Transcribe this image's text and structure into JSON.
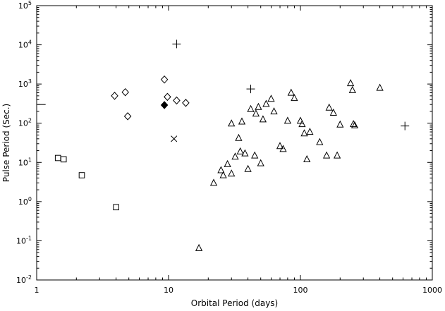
{
  "figure": {
    "background": "#ffffff",
    "axis_color": "#000000"
  },
  "chart_data": {
    "type": "scatter",
    "title": "",
    "xlabel": "Orbital Period (days)",
    "ylabel": "Pulse Period (Sec.)",
    "x_scale": "log",
    "y_scale": "log",
    "x_range": [
      1,
      1000
    ],
    "y_range": [
      0.01,
      100000
    ],
    "grid": false,
    "legend": "none",
    "x_tick_labels": [
      "1",
      "10",
      "100",
      "1000"
    ],
    "y_tick_exponents": [
      -2,
      -1,
      0,
      1,
      2,
      3,
      4,
      5
    ],
    "series": [
      {
        "name": "dash-symbol",
        "marker": "hline",
        "points": [
          [
            1.1,
            300
          ]
        ]
      },
      {
        "name": "open-squares",
        "marker": "square",
        "points": [
          [
            1.45,
            13
          ],
          [
            1.6,
            12
          ],
          [
            2.2,
            4.7
          ],
          [
            4.0,
            0.72
          ]
        ]
      },
      {
        "name": "open-diamonds",
        "marker": "diamond",
        "points": [
          [
            3.9,
            500
          ],
          [
            4.7,
            620
          ],
          [
            4.9,
            150
          ],
          [
            9.3,
            1300
          ],
          [
            9.8,
            470
          ],
          [
            11.5,
            380
          ],
          [
            13.5,
            330
          ]
        ]
      },
      {
        "name": "filled-diamond",
        "marker": "diamond-filled",
        "points": [
          [
            9.3,
            290
          ]
        ]
      },
      {
        "name": "plus-symbols",
        "marker": "plus",
        "points": [
          [
            11.5,
            10500
          ],
          [
            42,
            750
          ],
          [
            620,
            85
          ]
        ]
      },
      {
        "name": "cross-symbol",
        "marker": "cross",
        "points": [
          [
            11,
            40
          ]
        ]
      },
      {
        "name": "open-triangles",
        "marker": "triangle",
        "points": [
          [
            17,
            0.065
          ],
          [
            22,
            3
          ],
          [
            25,
            6.3
          ],
          [
            26,
            4.7
          ],
          [
            28,
            9
          ],
          [
            30,
            5.2
          ],
          [
            30,
            98
          ],
          [
            32,
            14
          ],
          [
            34,
            42
          ],
          [
            35,
            19
          ],
          [
            36,
            110
          ],
          [
            38,
            17
          ],
          [
            40,
            6.8
          ],
          [
            42,
            230
          ],
          [
            45,
            15
          ],
          [
            46,
            175
          ],
          [
            48,
            260
          ],
          [
            50,
            9.5
          ],
          [
            52,
            125
          ],
          [
            55,
            310
          ],
          [
            60,
            420
          ],
          [
            63,
            200
          ],
          [
            70,
            26
          ],
          [
            74,
            22
          ],
          [
            80,
            115
          ],
          [
            85,
            600
          ],
          [
            90,
            440
          ],
          [
            100,
            115
          ],
          [
            103,
            95
          ],
          [
            107,
            55
          ],
          [
            112,
            12
          ],
          [
            118,
            60
          ],
          [
            140,
            33
          ],
          [
            158,
            15
          ],
          [
            165,
            250
          ],
          [
            178,
            185
          ],
          [
            190,
            15
          ],
          [
            200,
            92
          ],
          [
            240,
            1050
          ],
          [
            248,
            700
          ],
          [
            252,
            95
          ],
          [
            258,
            88
          ],
          [
            400,
            800
          ]
        ]
      }
    ]
  }
}
